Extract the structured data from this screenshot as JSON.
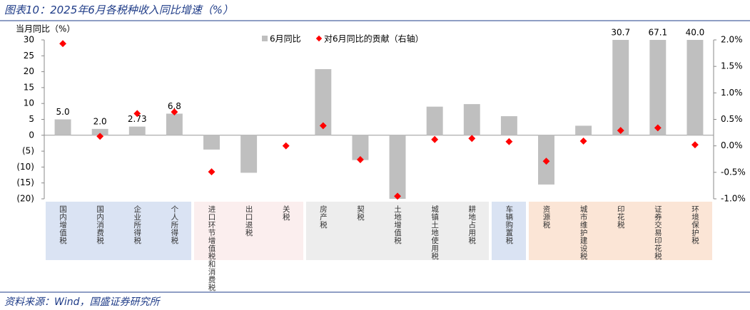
{
  "header": {
    "title": "图表10：2025年6月各税种收入同比增速（%）"
  },
  "chart_data": {
    "type": "bar",
    "y_label": "当月同比（%）",
    "categories": [
      "国内增值税",
      "国内消费税",
      "企业所得税",
      "个人所得税",
      "进口环节增值税和消费税",
      "出口退税",
      "关税",
      "房产税",
      "契税",
      "土地增值税",
      "城镇土地使用税",
      "耕地占用税",
      "车辆购置税",
      "资源税",
      "城市维护建设税",
      "印花税",
      "证券交易印花税",
      "环境保护税"
    ],
    "series": [
      {
        "name": "6月同比",
        "color": "#bfbfbf",
        "values": [
          5.0,
          2.0,
          2.73,
          6.8,
          -4.5,
          -11.8,
          0,
          20.8,
          -7.8,
          -20,
          9.0,
          9.8,
          6.0,
          -15.5,
          3.0,
          30.7,
          67.1,
          40.0
        ],
        "value_labels": [
          "5.0",
          "2.0",
          "2.73",
          "6.8",
          null,
          null,
          null,
          null,
          null,
          null,
          null,
          null,
          null,
          null,
          null,
          "30.7",
          "67.1",
          "40.0"
        ]
      },
      {
        "name": "对6月同比的贡献（右轴）",
        "color": "#ff0000",
        "axis": "y2",
        "type": "scatter",
        "values": [
          1.93,
          0.18,
          0.61,
          0.64,
          -0.49,
          null,
          0.0,
          0.38,
          -0.26,
          -0.95,
          0.12,
          0.14,
          0.08,
          -0.29,
          0.09,
          0.29,
          0.34,
          0.02
        ]
      }
    ],
    "ylim": [
      -20,
      30
    ],
    "yticks": [
      {
        "value": -20,
        "label": "(20)"
      },
      {
        "value": -15,
        "label": "(15)"
      },
      {
        "value": -10,
        "label": "(10)"
      },
      {
        "value": -5,
        "label": "(5)"
      },
      0,
      5,
      10,
      15,
      20,
      25,
      30
    ],
    "y2lim": [
      -1,
      2
    ],
    "y2ticks": [
      {
        "value": -1,
        "label": "-1.0%"
      },
      {
        "value": -0.5,
        "label": "-0.5%"
      },
      {
        "value": 0,
        "label": "0.0%"
      },
      {
        "value": 0.5,
        "label": "0.5%"
      },
      {
        "value": 1,
        "label": "1.0%"
      },
      {
        "value": 1.5,
        "label": "1.5%"
      },
      {
        "value": 2,
        "label": "2.0%"
      }
    ]
  },
  "footer": {
    "source": "资料来源：Wind，国盛证券研究所"
  }
}
